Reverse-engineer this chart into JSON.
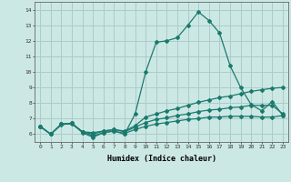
{
  "title": "",
  "xlabel": "Humidex (Indice chaleur)",
  "ylabel": "",
  "xlim": [
    -0.5,
    23.5
  ],
  "ylim": [
    5.5,
    14.5
  ],
  "xticks": [
    0,
    1,
    2,
    3,
    4,
    5,
    6,
    7,
    8,
    9,
    10,
    11,
    12,
    13,
    14,
    15,
    16,
    17,
    18,
    19,
    20,
    21,
    22,
    23
  ],
  "yticks": [
    6,
    7,
    8,
    9,
    10,
    11,
    12,
    13,
    14
  ],
  "background_color": "#cce8e4",
  "grid_color": "#aaccca",
  "line_color": "#1a7a6e",
  "lines": [
    {
      "x": [
        0,
        1,
        2,
        3,
        4,
        5,
        6,
        7,
        8,
        9,
        10,
        11,
        12,
        13,
        14,
        15,
        16,
        17,
        18,
        19,
        20,
        21,
        22,
        23
      ],
      "y": [
        6.5,
        6.0,
        6.6,
        6.7,
        6.1,
        5.8,
        6.1,
        6.2,
        6.0,
        7.3,
        10.0,
        11.9,
        12.0,
        12.2,
        13.0,
        13.85,
        13.3,
        12.5,
        10.4,
        9.0,
        7.9,
        7.5,
        8.1,
        7.2
      ],
      "marker": "D",
      "markersize": 2.0,
      "linewidth": 0.9,
      "linestyle": "-"
    },
    {
      "x": [
        0,
        1,
        2,
        3,
        4,
        5,
        6,
        7,
        8,
        9,
        10,
        11,
        12,
        13,
        14,
        15,
        16,
        17,
        18,
        19,
        20,
        21,
        22,
        23
      ],
      "y": [
        6.5,
        6.0,
        6.65,
        6.7,
        6.15,
        6.1,
        6.2,
        6.3,
        6.2,
        6.55,
        7.1,
        7.3,
        7.5,
        7.65,
        7.85,
        8.05,
        8.2,
        8.35,
        8.45,
        8.6,
        8.75,
        8.85,
        8.95,
        9.0
      ],
      "marker": "D",
      "markersize": 2.0,
      "linewidth": 0.9,
      "linestyle": "-"
    },
    {
      "x": [
        0,
        1,
        2,
        3,
        4,
        5,
        6,
        7,
        8,
        9,
        10,
        11,
        12,
        13,
        14,
        15,
        16,
        17,
        18,
        19,
        20,
        21,
        22,
        23
      ],
      "y": [
        6.5,
        6.0,
        6.65,
        6.7,
        6.15,
        6.0,
        6.2,
        6.3,
        6.15,
        6.45,
        6.75,
        6.95,
        7.05,
        7.2,
        7.3,
        7.45,
        7.55,
        7.6,
        7.7,
        7.75,
        7.85,
        7.85,
        7.85,
        7.3
      ],
      "marker": "D",
      "markersize": 2.0,
      "linewidth": 0.9,
      "linestyle": "-"
    },
    {
      "x": [
        0,
        1,
        2,
        3,
        4,
        5,
        6,
        7,
        8,
        9,
        10,
        11,
        12,
        13,
        14,
        15,
        16,
        17,
        18,
        19,
        20,
        21,
        22,
        23
      ],
      "y": [
        6.5,
        6.0,
        6.65,
        6.65,
        6.15,
        5.88,
        6.1,
        6.2,
        6.05,
        6.3,
        6.5,
        6.65,
        6.75,
        6.85,
        6.95,
        7.0,
        7.1,
        7.1,
        7.15,
        7.15,
        7.15,
        7.1,
        7.1,
        7.2
      ],
      "marker": "D",
      "markersize": 2.0,
      "linewidth": 0.9,
      "linestyle": "-"
    }
  ]
}
